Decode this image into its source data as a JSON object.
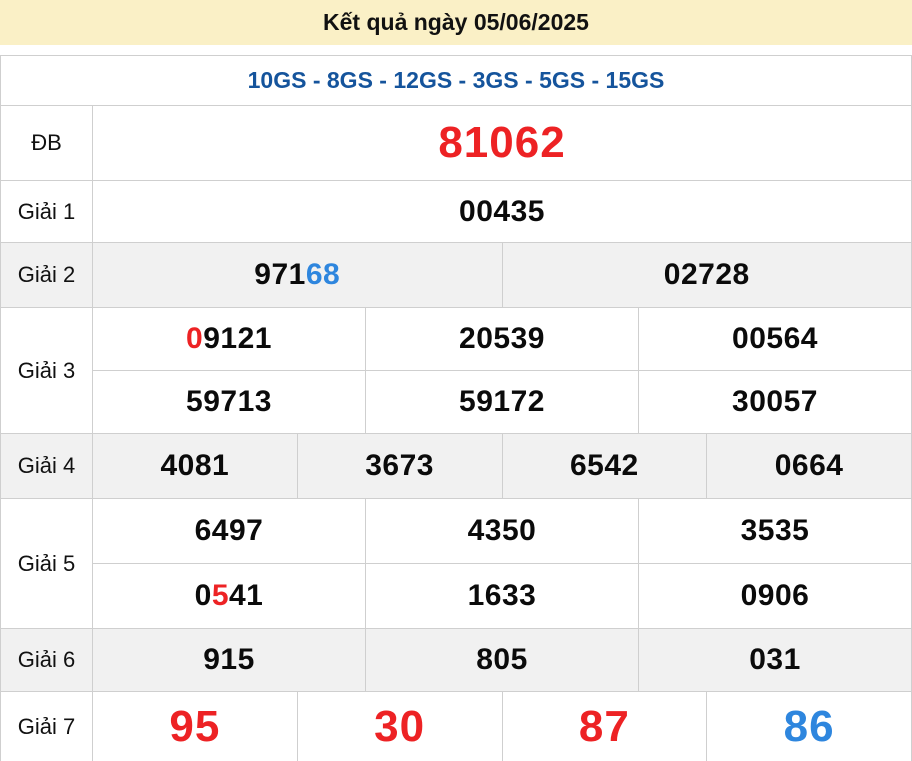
{
  "header": {
    "title": "Kết quả ngày 05/06/2025"
  },
  "subtitle": "10GS - 8GS - 12GS - 3GS - 5GS - 15GS",
  "colors": {
    "header_bg": "#FAF0C6",
    "red": "#ED2224",
    "blue": "#2E86DE",
    "subtitle_blue": "#15549C",
    "row_alt_bg": "#F1F1F1",
    "border": "#CFCFCF"
  },
  "prizes": {
    "special": {
      "label": "ĐB",
      "value": "81062"
    },
    "prize1": {
      "label": "Giải 1",
      "value": "00435"
    },
    "prize2": {
      "label": "Giải 2",
      "cell1": {
        "part1": "971",
        "part2_blue": "68"
      },
      "cell2": "02728"
    },
    "prize3": {
      "label": "Giải 3",
      "row1": {
        "cell1": {
          "part1_red": "0",
          "part2": "9121"
        },
        "cell2": "20539",
        "cell3": "00564"
      },
      "row2": {
        "cell1": "59713",
        "cell2": "59172",
        "cell3": "30057"
      }
    },
    "prize4": {
      "label": "Giải 4",
      "cell1": "4081",
      "cell2": "3673",
      "cell3": "6542",
      "cell4": "0664"
    },
    "prize5": {
      "label": "Giải 5",
      "row1": {
        "cell1": "6497",
        "cell2": "4350",
        "cell3": "3535"
      },
      "row2": {
        "cell1": {
          "part1": "0",
          "part2_red": "5",
          "part3": "41"
        },
        "cell2": "1633",
        "cell3": "0906"
      }
    },
    "prize6": {
      "label": "Giải 6",
      "cell1": "915",
      "cell2": "805",
      "cell3": "031"
    },
    "prize7": {
      "label": "Giải 7",
      "cell1_red": "95",
      "cell2_red": "30",
      "cell3_red": "87",
      "cell4_blue": "86"
    }
  }
}
